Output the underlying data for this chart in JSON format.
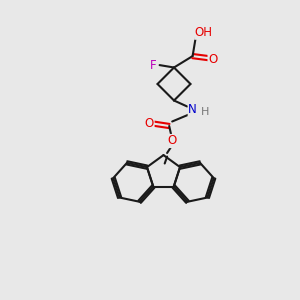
{
  "bg_color": "#e8e8e8",
  "bond_color": "#1a1a1a",
  "bond_width": 1.5,
  "atom_colors": {
    "O": "#e60000",
    "N": "#0000cc",
    "F": "#bb00bb",
    "H": "#777777",
    "C": "#1a1a1a"
  },
  "figsize": [
    3.0,
    3.0
  ],
  "dpi": 100
}
